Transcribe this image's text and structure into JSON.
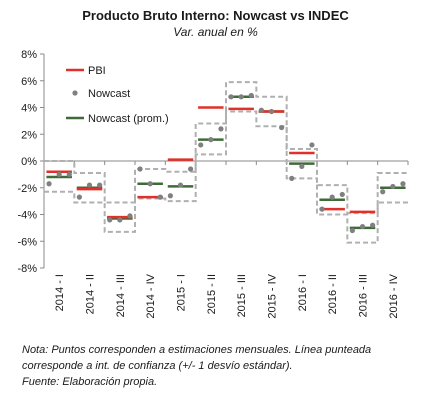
{
  "chart_data": {
    "type": "line",
    "title": "Producto Bruto Interno: Nowcast vs INDEC",
    "subtitle": "Var. anual en %",
    "categories": [
      "2014 - I",
      "2014 - II",
      "2014 - III",
      "2014 - IV",
      "2015 - I",
      "2015 - II",
      "2015 - III",
      "2015 - IV",
      "2016 - I",
      "2016 - II",
      "2016 - III",
      "2016 - IV"
    ],
    "ylim": [
      -8,
      8
    ],
    "yticks": [
      -8,
      -6,
      -4,
      -2,
      0,
      2,
      4,
      6,
      8
    ],
    "ytick_labels": [
      "-8%",
      "-6%",
      "-4%",
      "-2%",
      "0%",
      "2%",
      "4%",
      "6%",
      "8%"
    ],
    "grid": false,
    "legend_position": "top-left",
    "legend": [
      {
        "label": "PBI",
        "color": "#e0302a",
        "kind": "dash"
      },
      {
        "label": "Nowcast",
        "color": "#808080",
        "kind": "dot"
      },
      {
        "label": "Nowcast (prom.)",
        "color": "#3e6b38",
        "kind": "dash"
      }
    ],
    "series": [
      {
        "name": "PBI",
        "color": "#e0302a",
        "values": [
          -0.8,
          -2.1,
          -4.2,
          -2.7,
          0.1,
          4.0,
          3.9,
          3.7,
          0.6,
          -3.6,
          -3.8,
          null
        ]
      },
      {
        "name": "Nowcast (prom.)",
        "color": "#3e6b38",
        "values": [
          -1.2,
          -2.0,
          -4.3,
          -1.7,
          -1.9,
          1.6,
          4.8,
          3.7,
          -0.2,
          -2.9,
          -5.0,
          -2.0
        ]
      },
      {
        "name": "Nowcast",
        "color": "#808080",
        "points": [
          [
            0,
            -1.7
          ],
          [
            0,
            -1.0
          ],
          [
            0,
            -1.0
          ],
          [
            1,
            -2.7
          ],
          [
            1,
            -1.8
          ],
          [
            1,
            -1.8
          ],
          [
            2,
            -4.4
          ],
          [
            2,
            -4.4
          ],
          [
            2,
            -4.1
          ],
          [
            3,
            -0.6
          ],
          [
            3,
            -1.7
          ],
          [
            3,
            -2.7
          ],
          [
            4,
            -2.6
          ],
          [
            4,
            -1.8
          ],
          [
            4,
            -0.6
          ],
          [
            5,
            1.2
          ],
          [
            5,
            1.6
          ],
          [
            5,
            2.4
          ],
          [
            6,
            4.8
          ],
          [
            6,
            4.8
          ],
          [
            6,
            4.9
          ],
          [
            7,
            3.8
          ],
          [
            7,
            3.7
          ],
          [
            7,
            2.5
          ],
          [
            8,
            -1.3
          ],
          [
            8,
            -0.4
          ],
          [
            8,
            1.2
          ],
          [
            9,
            -3.6
          ],
          [
            9,
            -2.7
          ],
          [
            9,
            -2.5
          ],
          [
            10,
            -5.2
          ],
          [
            10,
            -4.9
          ],
          [
            10,
            -4.8
          ],
          [
            11,
            -2.3
          ],
          [
            11,
            -1.9
          ],
          [
            11,
            -1.7
          ]
        ]
      },
      {
        "name": "Nowcast +1 desvío",
        "color": "#b0b0b0",
        "style": "dashed",
        "values": [
          0.0,
          -0.9,
          -3.1,
          -0.6,
          -0.8,
          2.8,
          5.9,
          4.8,
          0.9,
          -1.8,
          -3.9,
          -0.9
        ]
      },
      {
        "name": "Nowcast -1 desvío",
        "color": "#b0b0b0",
        "style": "dashed",
        "values": [
          -2.3,
          -3.1,
          -5.3,
          -2.8,
          -3.0,
          0.5,
          3.7,
          2.6,
          -1.3,
          -4.0,
          -6.1,
          -3.1
        ]
      }
    ]
  },
  "notes": {
    "line1": "Nota: Puntos corresponden a estimaciones mensuales. Línea punteada",
    "line2": "corresponde a int. de confianza (+/- 1 desvío estándar).",
    "line3": "Fuente: Elaboración propia."
  }
}
